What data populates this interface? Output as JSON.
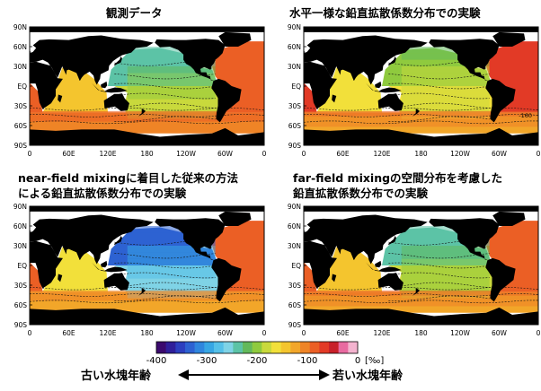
{
  "chart_data": [
    {
      "type": "heatmap",
      "title": "観測データ",
      "variable_range": [
        -400,
        0
      ],
      "description_levels": {
        "pacific_north": -230,
        "pacific_south": -180,
        "atlantic": -80,
        "southern_ocean": -110,
        "indian": -150
      },
      "x_ticks": [
        "0",
        "60E",
        "120E",
        "180",
        "120W",
        "60W",
        "0"
      ],
      "y_ticks": [
        "90N",
        "60N",
        "30N",
        "EQ",
        "30S",
        "60S",
        "90S"
      ]
    },
    {
      "type": "heatmap",
      "title": "水平一様な鉛直拡散係数分布での実験",
      "contour_label": "-160",
      "variable_range": [
        -400,
        0
      ],
      "description_levels": {
        "pacific_north": -200,
        "pacific_south": -170,
        "atlantic": -70,
        "southern_ocean": -120,
        "indian": -160
      },
      "x_ticks": [
        "0",
        "60E",
        "120E",
        "180",
        "120W",
        "60W",
        "0"
      ],
      "y_ticks": [
        "90N",
        "60N",
        "30N",
        "EQ",
        "30S",
        "60S",
        "90S"
      ]
    },
    {
      "type": "heatmap",
      "title_lines": [
        "near-field mixingに着目した従来の方法",
        "による鉛直拡散係数分布での実験"
      ],
      "variable_range": [
        -400,
        0
      ],
      "description_levels": {
        "pacific_north": -330,
        "pacific_south": -250,
        "atlantic": -90,
        "southern_ocean": -130,
        "indian": -160
      },
      "x_ticks": [
        "0",
        "60E",
        "120E",
        "180",
        "120W",
        "60W",
        "0"
      ],
      "y_ticks": [
        "90N",
        "60N",
        "30N",
        "EQ",
        "30S",
        "60S",
        "90S"
      ]
    },
    {
      "type": "heatmap",
      "title_lines": [
        "far-field mixingの空間分布を考慮した",
        "鉛直拡散係数分布での実験"
      ],
      "variable_range": [
        -400,
        0
      ],
      "description_levels": {
        "pacific_north": -230,
        "pacific_south": -190,
        "atlantic": -80,
        "southern_ocean": -115,
        "indian": -150
      },
      "x_ticks": [
        "0",
        "60E",
        "120E",
        "180",
        "120W",
        "60W",
        "0"
      ],
      "y_ticks": [
        "90N",
        "60N",
        "30N",
        "EQ",
        "30S",
        "60S",
        "90S"
      ]
    }
  ],
  "colorbar": {
    "ticks": [
      "-400",
      "-300",
      "-200",
      "-100",
      "0"
    ],
    "tick_values": [
      -400,
      -300,
      -200,
      -100,
      0
    ],
    "unit": "[‰]",
    "colors": [
      "#3b0a6e",
      "#2f1f9a",
      "#2c3fbf",
      "#2d62d2",
      "#2f86de",
      "#37a6e4",
      "#55c0e8",
      "#7fd3e6",
      "#5cc3a6",
      "#63b95b",
      "#8fca3e",
      "#c9d93c",
      "#f2e03a",
      "#f4c52e",
      "#f2a62a",
      "#ef8426",
      "#eb5f25",
      "#e23a26",
      "#c8202a",
      "#e86aa0",
      "#f4b3cf"
    ]
  },
  "arrow_labels": {
    "left": "古い水塊年齢",
    "right": "若い水塊年齢"
  },
  "colors": {
    "land": "#000000",
    "ice": "#ffffff",
    "grid": "#888888"
  }
}
